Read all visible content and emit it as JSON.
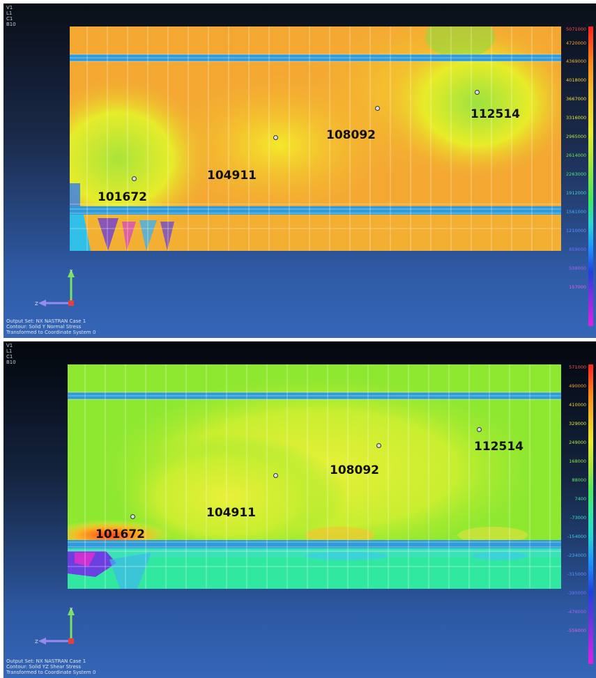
{
  "viewports": [
    {
      "corner_labels": [
        "V1",
        "L1",
        "C1",
        "B10"
      ],
      "nodes": [
        {
          "label": "101672"
        },
        {
          "label": "104911"
        },
        {
          "label": "108092"
        },
        {
          "label": "112514"
        }
      ],
      "legend": [
        "5071000",
        "4720000",
        "4369000",
        "4018000",
        "3667000",
        "3316000",
        "2965000",
        "2614000",
        "2263000",
        "1912000",
        "1561000",
        "1210000",
        "859000",
        "508000",
        "157000"
      ],
      "footer": [
        "Output Set: NX NASTRAN Case 1",
        "Contour: Solid Y Normal Stress",
        "Transformed to Coordinate System 0"
      ],
      "colors": {
        "plot_main": "#f4a832",
        "highlight": "#b8e840",
        "band": "#2f9bd8"
      }
    },
    {
      "corner_labels": [
        "V1",
        "L1",
        "C1",
        "B10"
      ],
      "nodes": [
        {
          "label": "101672"
        },
        {
          "label": "104911"
        },
        {
          "label": "108092"
        },
        {
          "label": "112514"
        }
      ],
      "legend": [
        "571000",
        "490000",
        "410000",
        "329000",
        "249000",
        "168000",
        "88000",
        "7400",
        "-73000",
        "-154000",
        "-234000",
        "-315000",
        "-395000",
        "-476000",
        "-556000"
      ],
      "footer": [
        "Output Set: NX NASTRAN Case 1",
        "Contour: Solid YZ Shear Stress",
        "Transformed to Coordinate System 0"
      ],
      "colors": {
        "plot_main": "#a8ec30",
        "highlight": "#f0f040",
        "band": "#2f9bd8"
      }
    }
  ]
}
